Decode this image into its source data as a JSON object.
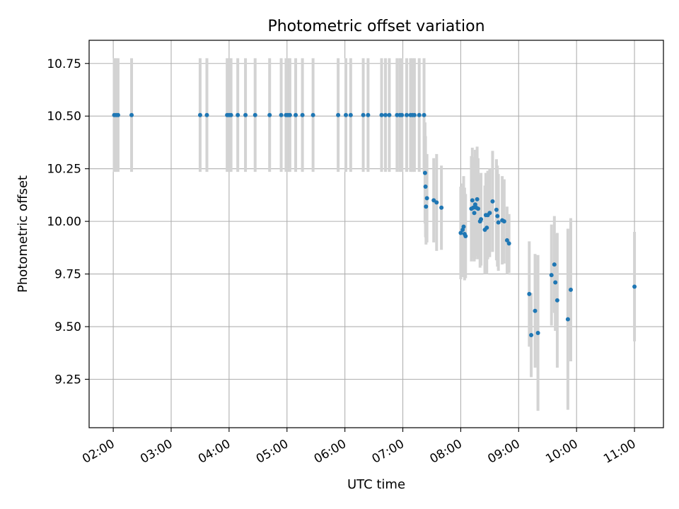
{
  "chart_data": {
    "type": "scatter",
    "title": "Photometric offset variation",
    "xlabel": "UTC time",
    "ylabel": "Photometric offset",
    "x_tick_labels": [
      "02:00",
      "03:00",
      "04:00",
      "05:00",
      "06:00",
      "07:00",
      "08:00",
      "09:00",
      "10:00",
      "11:00"
    ],
    "x_tick_values": [
      0,
      60,
      120,
      180,
      240,
      300,
      360,
      420,
      480,
      540
    ],
    "x_unit": "minutes after 02:00 UTC",
    "y_tick_labels": [
      "9.25",
      "9.50",
      "9.75",
      "10.00",
      "10.25",
      "10.50",
      "10.75"
    ],
    "y_tick_values": [
      9.25,
      9.5,
      9.75,
      10.0,
      10.25,
      10.5,
      10.75
    ],
    "xlim": [
      -25,
      570
    ],
    "ylim": [
      9.02,
      10.86
    ],
    "grid": true,
    "colors": {
      "point": "#1f77b4",
      "errorbar": "#d3d3d3",
      "grid": "#b0b0b0"
    },
    "points": [
      {
        "x": 1,
        "y": 10.505,
        "err": 0.27
      },
      {
        "x": 3,
        "y": 10.505,
        "err": 0.27
      },
      {
        "x": 5,
        "y": 10.505,
        "err": 0.27
      },
      {
        "x": 19,
        "y": 10.505,
        "err": 0.27
      },
      {
        "x": 90,
        "y": 10.505,
        "err": 0.27
      },
      {
        "x": 97,
        "y": 10.505,
        "err": 0.27
      },
      {
        "x": 118,
        "y": 10.505,
        "err": 0.27
      },
      {
        "x": 120,
        "y": 10.505,
        "err": 0.27
      },
      {
        "x": 122,
        "y": 10.505,
        "err": 0.27
      },
      {
        "x": 129,
        "y": 10.505,
        "err": 0.27
      },
      {
        "x": 137,
        "y": 10.505,
        "err": 0.27
      },
      {
        "x": 147,
        "y": 10.505,
        "err": 0.27
      },
      {
        "x": 162,
        "y": 10.505,
        "err": 0.27
      },
      {
        "x": 174,
        "y": 10.505,
        "err": 0.27
      },
      {
        "x": 179,
        "y": 10.505,
        "err": 0.27
      },
      {
        "x": 181,
        "y": 10.505,
        "err": 0.27
      },
      {
        "x": 183,
        "y": 10.505,
        "err": 0.27
      },
      {
        "x": 189,
        "y": 10.505,
        "err": 0.27
      },
      {
        "x": 196,
        "y": 10.505,
        "err": 0.27
      },
      {
        "x": 207,
        "y": 10.505,
        "err": 0.27
      },
      {
        "x": 233,
        "y": 10.505,
        "err": 0.27
      },
      {
        "x": 241,
        "y": 10.505,
        "err": 0.27
      },
      {
        "x": 246,
        "y": 10.505,
        "err": 0.27
      },
      {
        "x": 259,
        "y": 10.505,
        "err": 0.27
      },
      {
        "x": 264,
        "y": 10.505,
        "err": 0.27
      },
      {
        "x": 278,
        "y": 10.505,
        "err": 0.27
      },
      {
        "x": 282,
        "y": 10.505,
        "err": 0.27
      },
      {
        "x": 286,
        "y": 10.505,
        "err": 0.27
      },
      {
        "x": 294,
        "y": 10.505,
        "err": 0.27
      },
      {
        "x": 297,
        "y": 10.505,
        "err": 0.27
      },
      {
        "x": 299,
        "y": 10.505,
        "err": 0.27
      },
      {
        "x": 304,
        "y": 10.505,
        "err": 0.27
      },
      {
        "x": 308,
        "y": 10.505,
        "err": 0.27
      },
      {
        "x": 310,
        "y": 10.505,
        "err": 0.27
      },
      {
        "x": 312,
        "y": 10.505,
        "err": 0.27
      },
      {
        "x": 317,
        "y": 10.505,
        "err": 0.27
      },
      {
        "x": 322,
        "y": 10.505,
        "err": 0.27
      },
      {
        "x": 323,
        "y": 10.23,
        "err": 0.24
      },
      {
        "x": 323.5,
        "y": 10.165,
        "err": 0.24
      },
      {
        "x": 324,
        "y": 10.07,
        "err": 0.18
      },
      {
        "x": 325,
        "y": 10.11,
        "err": 0.21
      },
      {
        "x": 332,
        "y": 10.1,
        "err": 0.2
      },
      {
        "x": 335,
        "y": 10.09,
        "err": 0.23
      },
      {
        "x": 340,
        "y": 10.065,
        "err": 0.2
      },
      {
        "x": 360,
        "y": 9.945,
        "err": 0.22
      },
      {
        "x": 362,
        "y": 9.96,
        "err": 0.22
      },
      {
        "x": 363,
        "y": 9.975,
        "err": 0.24
      },
      {
        "x": 364,
        "y": 9.94,
        "err": 0.22
      },
      {
        "x": 365,
        "y": 9.93,
        "err": 0.2
      },
      {
        "x": 371,
        "y": 10.06,
        "err": 0.25
      },
      {
        "x": 372,
        "y": 10.1,
        "err": 0.25
      },
      {
        "x": 373,
        "y": 10.065,
        "err": 0.24
      },
      {
        "x": 374,
        "y": 10.04,
        "err": 0.23
      },
      {
        "x": 375,
        "y": 10.08,
        "err": 0.26
      },
      {
        "x": 376,
        "y": 10.065,
        "err": 0.23
      },
      {
        "x": 377,
        "y": 10.105,
        "err": 0.25
      },
      {
        "x": 378,
        "y": 10.06,
        "err": 0.24
      },
      {
        "x": 380,
        "y": 10.0,
        "err": 0.22
      },
      {
        "x": 381,
        "y": 10.01,
        "err": 0.22
      },
      {
        "x": 385,
        "y": 9.96,
        "err": 0.21
      },
      {
        "x": 386,
        "y": 10.03,
        "err": 0.2
      },
      {
        "x": 387,
        "y": 9.97,
        "err": 0.22
      },
      {
        "x": 388,
        "y": 10.03,
        "err": 0.21
      },
      {
        "x": 390,
        "y": 10.04,
        "err": 0.21
      },
      {
        "x": 393,
        "y": 10.095,
        "err": 0.24
      },
      {
        "x": 397,
        "y": 10.055,
        "err": 0.24
      },
      {
        "x": 398,
        "y": 10.025,
        "err": 0.24
      },
      {
        "x": 399,
        "y": 9.995,
        "err": 0.23
      },
      {
        "x": 403,
        "y": 10.005,
        "err": 0.21
      },
      {
        "x": 405,
        "y": 10.0,
        "err": 0.2
      },
      {
        "x": 408,
        "y": 9.91,
        "err": 0.16
      },
      {
        "x": 410,
        "y": 9.895,
        "err": 0.14
      },
      {
        "x": 431,
        "y": 9.655,
        "err": 0.25
      },
      {
        "x": 433,
        "y": 9.46,
        "err": 0.2
      },
      {
        "x": 437,
        "y": 9.575,
        "err": 0.27
      },
      {
        "x": 440,
        "y": 9.47,
        "err": 0.37
      },
      {
        "x": 454,
        "y": 9.745,
        "err": 0.24
      },
      {
        "x": 457,
        "y": 9.795,
        "err": 0.23
      },
      {
        "x": 458,
        "y": 9.71,
        "err": 0.23
      },
      {
        "x": 460,
        "y": 9.625,
        "err": 0.32
      },
      {
        "x": 471,
        "y": 9.535,
        "err": 0.43
      },
      {
        "x": 474,
        "y": 9.675,
        "err": 0.34
      },
      {
        "x": 540,
        "y": 9.69,
        "err": 0.26
      }
    ]
  }
}
